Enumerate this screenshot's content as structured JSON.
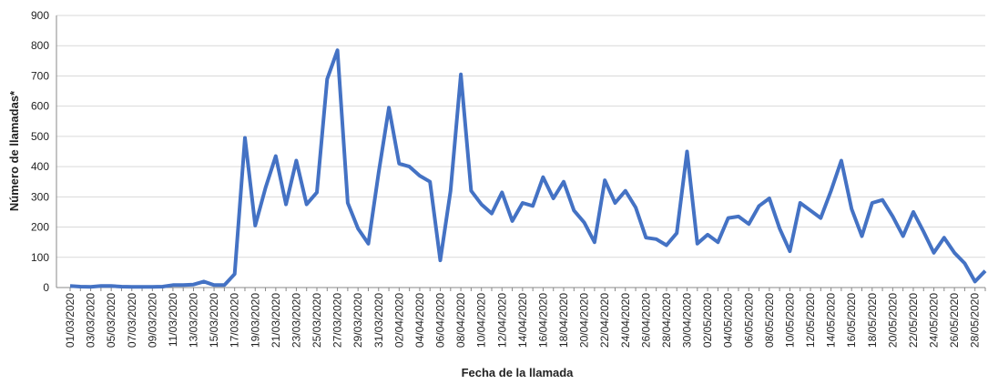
{
  "chart_data": {
    "type": "line",
    "y_label": "Número de llamadas*",
    "x_label": "Fecha de la llamada",
    "categories": [
      "01/03/2020",
      null,
      "03/03/2020",
      null,
      "05/03/2020",
      null,
      "07/03/2020",
      null,
      "09/03/2020",
      null,
      "11/03/2020",
      null,
      "13/03/2020",
      null,
      "15/03/2020",
      null,
      "17/03/2020",
      null,
      "19/03/2020",
      null,
      "21/03/2020",
      null,
      "23/03/2020",
      null,
      "25/03/2020",
      null,
      "27/03/2020",
      null,
      "29/03/2020",
      null,
      "31/03/2020",
      null,
      "02/04/2020",
      null,
      "04/04/2020",
      null,
      "06/04/2020",
      null,
      "08/04/2020",
      null,
      "10/04/2020",
      null,
      "12/04/2020",
      null,
      "14/04/2020",
      null,
      "16/04/2020",
      null,
      "18/04/2020",
      null,
      "20/04/2020",
      null,
      "22/04/2020",
      null,
      "24/04/2020",
      null,
      "26/04/2020",
      null,
      "28/04/2020",
      null,
      "30/04/2020",
      null,
      "02/05/2020",
      null,
      "04/05/2020",
      null,
      "06/05/2020",
      null,
      "08/05/2020",
      null,
      "10/05/2020",
      null,
      "12/05/2020",
      null,
      "14/05/2020",
      null,
      "16/05/2020",
      null,
      "18/05/2020",
      null,
      "20/05/2020",
      null,
      "22/05/2020",
      null,
      "24/05/2020",
      null,
      "26/05/2020",
      null,
      "28/05/2020",
      null
    ],
    "values": [
      5,
      3,
      2,
      5,
      5,
      3,
      2,
      2,
      2,
      3,
      8,
      8,
      10,
      20,
      8,
      8,
      45,
      495,
      205,
      330,
      435,
      275,
      420,
      275,
      315,
      690,
      785,
      280,
      195,
      145,
      380,
      595,
      410,
      400,
      370,
      350,
      90,
      320,
      705,
      320,
      275,
      245,
      315,
      220,
      280,
      270,
      365,
      295,
      350,
      255,
      215,
      150,
      355,
      280,
      320,
      265,
      165,
      160,
      140,
      180,
      450,
      145,
      175,
      150,
      230,
      235,
      210,
      270,
      295,
      195,
      120,
      280,
      255,
      230,
      320,
      420,
      260,
      170,
      280,
      290,
      235,
      170,
      250,
      185,
      115,
      165,
      115,
      80,
      20,
      55
    ],
    "color": "#4472c4",
    "ylim": [
      0,
      900
    ],
    "yticks": [
      0,
      100,
      200,
      300,
      400,
      500,
      600,
      700,
      800,
      900
    ],
    "grid": true
  }
}
